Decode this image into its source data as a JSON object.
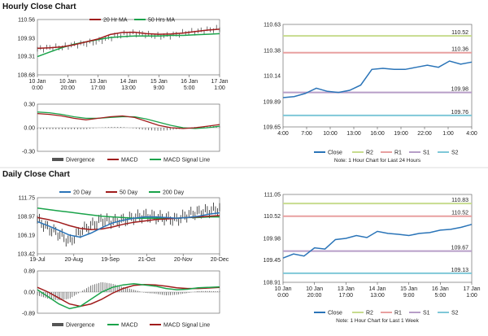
{
  "sections": {
    "hourly_title": "Hourly Close Chart",
    "daily_title": "Daily Close Chart"
  },
  "colors": {
    "red": "#a01c1c",
    "green": "#1aa34a",
    "blue": "#2a74b8",
    "bar": "#555555",
    "r2": "#c7dc8e",
    "r1": "#e8a0a0",
    "s1": "#b79ec8",
    "s2": "#7fc8d8"
  },
  "chart_data": [
    {
      "id": "hourly_price",
      "type": "line",
      "legend": [
        "20 Hr MA",
        "50 Hrs MA"
      ],
      "yticks": [
        "110.56",
        "109.93",
        "109.31",
        "108.68"
      ],
      "ylim": [
        108.68,
        110.56
      ],
      "xticks": [
        "10 Jan\n0:00",
        "10 Jan\n20:00",
        "13 Jan\n17:00",
        "14 Jan\n13:00",
        "15 Jan\n9:00",
        "16 Jan\n5:00",
        "17 Jan\n1:00"
      ],
      "series": [
        {
          "name": "Close",
          "values": [
            109.55,
            109.6,
            109.62,
            109.7,
            109.75,
            109.82,
            109.95,
            110.05,
            110.1,
            110.05,
            110.0,
            110.02,
            110.1,
            110.15,
            110.2,
            110.25
          ]
        },
        {
          "name": "20 Hr MA",
          "values": [
            109.58,
            109.6,
            109.63,
            109.7,
            109.8,
            109.9,
            110.05,
            110.12,
            110.13,
            110.08,
            110.06,
            110.07,
            110.1,
            110.15,
            110.2,
            110.23
          ]
        },
        {
          "name": "50 Hrs MA",
          "values": [
            109.3,
            109.45,
            109.6,
            109.72,
            109.8,
            109.88,
            109.95,
            109.98,
            110.0,
            110.0,
            110.0,
            110.02,
            110.02,
            110.04,
            110.06,
            110.08
          ]
        }
      ]
    },
    {
      "id": "hourly_macd",
      "type": "line",
      "legend": [
        "Divergence",
        "MACD",
        "MACD Signal Line"
      ],
      "yticks": [
        "0.30",
        "0.00",
        "-0.30"
      ],
      "ylim": [
        -0.3,
        0.3
      ],
      "series": [
        {
          "name": "MACD",
          "values": [
            0.18,
            0.17,
            0.15,
            0.12,
            0.1,
            0.12,
            0.14,
            0.15,
            0.13,
            0.08,
            0.03,
            0.0,
            -0.01,
            0.0,
            0.02,
            0.04
          ]
        },
        {
          "name": "MACD Signal Line",
          "values": [
            0.2,
            0.19,
            0.17,
            0.14,
            0.12,
            0.12,
            0.13,
            0.14,
            0.14,
            0.11,
            0.07,
            0.03,
            0.0,
            -0.01,
            0.0,
            0.02
          ]
        }
      ]
    },
    {
      "id": "hourly_24h",
      "type": "line",
      "yticks": [
        "110.63",
        "110.38",
        "110.14",
        "109.89",
        "109.65"
      ],
      "ylim": [
        109.65,
        110.63
      ],
      "xticks": [
        "4:00",
        "7:00",
        "10:00",
        "13:00",
        "16:00",
        "19:00",
        "22:00",
        "1:00",
        "4:00"
      ],
      "levels": [
        {
          "name": "R2",
          "value": 110.52,
          "label": "110.52"
        },
        {
          "name": "R1",
          "value": 110.36,
          "label": "110.36"
        },
        {
          "name": "S1",
          "value": 109.98,
          "label": "109.98"
        },
        {
          "name": "S2",
          "value": 109.76,
          "label": "109.76"
        }
      ],
      "legend": [
        "Close",
        "R2",
        "R1",
        "S1",
        "S2"
      ],
      "note": "Note: 1 Hour Chart for Last 24 Hours",
      "series": [
        {
          "name": "Close",
          "values": [
            109.93,
            109.94,
            109.97,
            110.02,
            109.99,
            109.98,
            110.0,
            110.05,
            110.2,
            110.21,
            110.2,
            110.2,
            110.22,
            110.24,
            110.22,
            110.28,
            110.25,
            110.27
          ]
        }
      ]
    },
    {
      "id": "daily_price",
      "type": "line",
      "legend": [
        "20 Day",
        "50 Day",
        "200 Day"
      ],
      "yticks": [
        "111.75",
        "108.97",
        "106.19",
        "103.42"
      ],
      "ylim": [
        103.42,
        111.75
      ],
      "xticks": [
        "19-Jul",
        "20-Aug",
        "19-Sep",
        "21-Oct",
        "20-Nov",
        "20-Dec"
      ],
      "series": [
        {
          "name": "Close",
          "values": [
            108.5,
            107.2,
            106.4,
            105.2,
            106.8,
            107.6,
            108.5,
            108.2,
            108.4,
            108.8,
            109.1,
            108.9,
            108.7,
            108.5,
            109.2,
            109.6,
            109.8,
            110.1
          ]
        },
        {
          "name": "20 Day",
          "values": [
            108.2,
            107.6,
            106.9,
            106.2,
            105.9,
            106.5,
            107.3,
            108.0,
            108.4,
            108.7,
            108.9,
            108.9,
            108.8,
            108.7,
            108.8,
            109.0,
            109.3,
            109.5
          ]
        },
        {
          "name": "50 Day",
          "values": [
            108.8,
            108.5,
            108.1,
            107.6,
            107.2,
            107.0,
            107.1,
            107.4,
            107.8,
            108.1,
            108.3,
            108.5,
            108.6,
            108.7,
            108.8,
            108.9,
            109.0,
            109.1
          ]
        },
        {
          "name": "200 Day",
          "values": [
            110.2,
            110.0,
            109.8,
            109.6,
            109.4,
            109.2,
            109.0,
            108.9,
            108.8,
            108.7,
            108.7,
            108.7,
            108.7,
            108.7,
            108.8,
            108.8,
            108.9,
            108.9
          ]
        }
      ]
    },
    {
      "id": "daily_macd",
      "type": "line",
      "legend": [
        "Divergence",
        "MACD",
        "MACD Signal Line"
      ],
      "yticks": [
        "0.89",
        "0.00",
        "-0.89"
      ],
      "ylim": [
        -0.89,
        0.89
      ],
      "series": [
        {
          "name": "MACD",
          "values": [
            0.1,
            -0.2,
            -0.5,
            -0.7,
            -0.6,
            -0.3,
            0.0,
            0.2,
            0.3,
            0.35,
            0.3,
            0.25,
            0.15,
            0.1,
            0.12,
            0.18,
            0.2,
            0.22
          ]
        },
        {
          "name": "MACD Signal Line",
          "values": [
            0.2,
            0.0,
            -0.25,
            -0.5,
            -0.6,
            -0.5,
            -0.3,
            -0.05,
            0.15,
            0.28,
            0.32,
            0.3,
            0.25,
            0.18,
            0.15,
            0.15,
            0.17,
            0.2
          ]
        }
      ]
    },
    {
      "id": "daily_week",
      "type": "line",
      "yticks": [
        "111.05",
        "110.52",
        "109.98",
        "109.45",
        "108.91"
      ],
      "ylim": [
        108.91,
        111.05
      ],
      "xticks": [
        "10 Jan\n0:00",
        "10 Jan\n20:00",
        "13 Jan\n17:00",
        "14 Jan\n13:00",
        "15 Jan\n9:00",
        "16 Jan\n5:00",
        "17 Jan\n1:00"
      ],
      "levels": [
        {
          "name": "R2",
          "value": 110.83,
          "label": "110.83"
        },
        {
          "name": "R1",
          "value": 110.52,
          "label": "110.52"
        },
        {
          "name": "S1",
          "value": 109.67,
          "label": "109.67"
        },
        {
          "name": "S2",
          "value": 109.13,
          "label": "109.13"
        }
      ],
      "legend": [
        "Close",
        "R2",
        "R1",
        "S1",
        "S2"
      ],
      "note": "Note: 1 Hour Chart for Last 1 Week",
      "series": [
        {
          "name": "Close",
          "values": [
            109.5,
            109.6,
            109.55,
            109.75,
            109.72,
            109.95,
            109.98,
            110.05,
            110.0,
            110.15,
            110.1,
            110.08,
            110.05,
            110.1,
            110.12,
            110.18,
            110.2,
            110.25,
            110.32
          ]
        }
      ]
    }
  ]
}
